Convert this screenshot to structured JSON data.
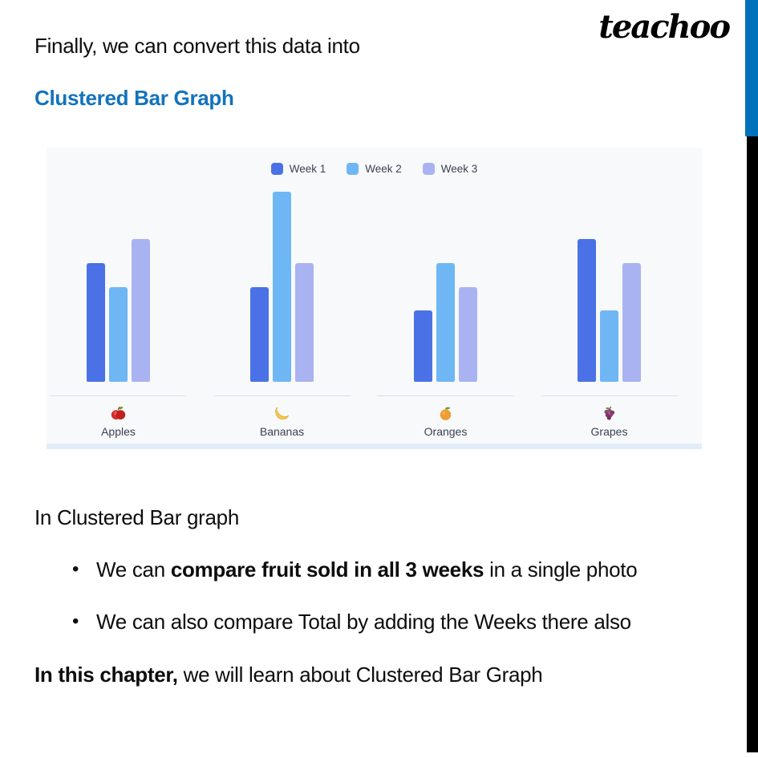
{
  "header": {
    "line1": "Finally, we can convert this data into",
    "line2": "Clustered Bar Graph",
    "brand": "teachoo"
  },
  "chart_data": {
    "type": "bar",
    "variant": "clustered",
    "title": "",
    "categories": [
      "Apples",
      "Bananas",
      "Oranges",
      "Grapes"
    ],
    "category_emojis": [
      "🍎",
      "🍌",
      "🍊",
      "🍇"
    ],
    "category_icons": [
      "apple-icon",
      "banana-icon",
      "orange-icon",
      "grapes-icon"
    ],
    "series": [
      {
        "name": "Week 1",
        "color": "#4a72e6",
        "values": [
          5,
          4,
          3,
          6
        ]
      },
      {
        "name": "Week 2",
        "color": "#6eb7f4",
        "values": [
          4,
          8,
          5,
          3
        ]
      },
      {
        "name": "Week 3",
        "color": "#a9b3f2",
        "values": [
          6,
          5,
          4,
          5
        ]
      }
    ],
    "ylim": [
      0,
      8
    ],
    "legend_position": "top-center",
    "grid": false,
    "value_axis_hidden": true,
    "xlabel": "",
    "ylabel": ""
  },
  "body": {
    "intro": "In Clustered Bar graph",
    "bullets": [
      {
        "segments": [
          {
            "text": "We can ",
            "bold": false
          },
          {
            "text": "compare fruit sold in all 3 weeks",
            "bold": true
          },
          {
            "text": " in a single photo",
            "bold": false
          }
        ]
      },
      {
        "segments": [
          {
            "text": "We can also compare Total by adding the Weeks there also",
            "bold": false
          }
        ]
      }
    ],
    "closing": {
      "segments": [
        {
          "text": "In this chapter,",
          "bold": true
        },
        {
          "text": " we will learn about Clustered Bar Graph",
          "bold": false
        }
      ]
    }
  },
  "colors": {
    "subheading_blue": "#1273bc",
    "edge_bar_blue": "#0072bb",
    "edge_bar_black": "#000000",
    "chart_background": "#f8f9fb",
    "week1": "#4a72e6",
    "week2": "#6eb7f4",
    "week3": "#a9b3f2",
    "label_gray": "#3a4151"
  }
}
